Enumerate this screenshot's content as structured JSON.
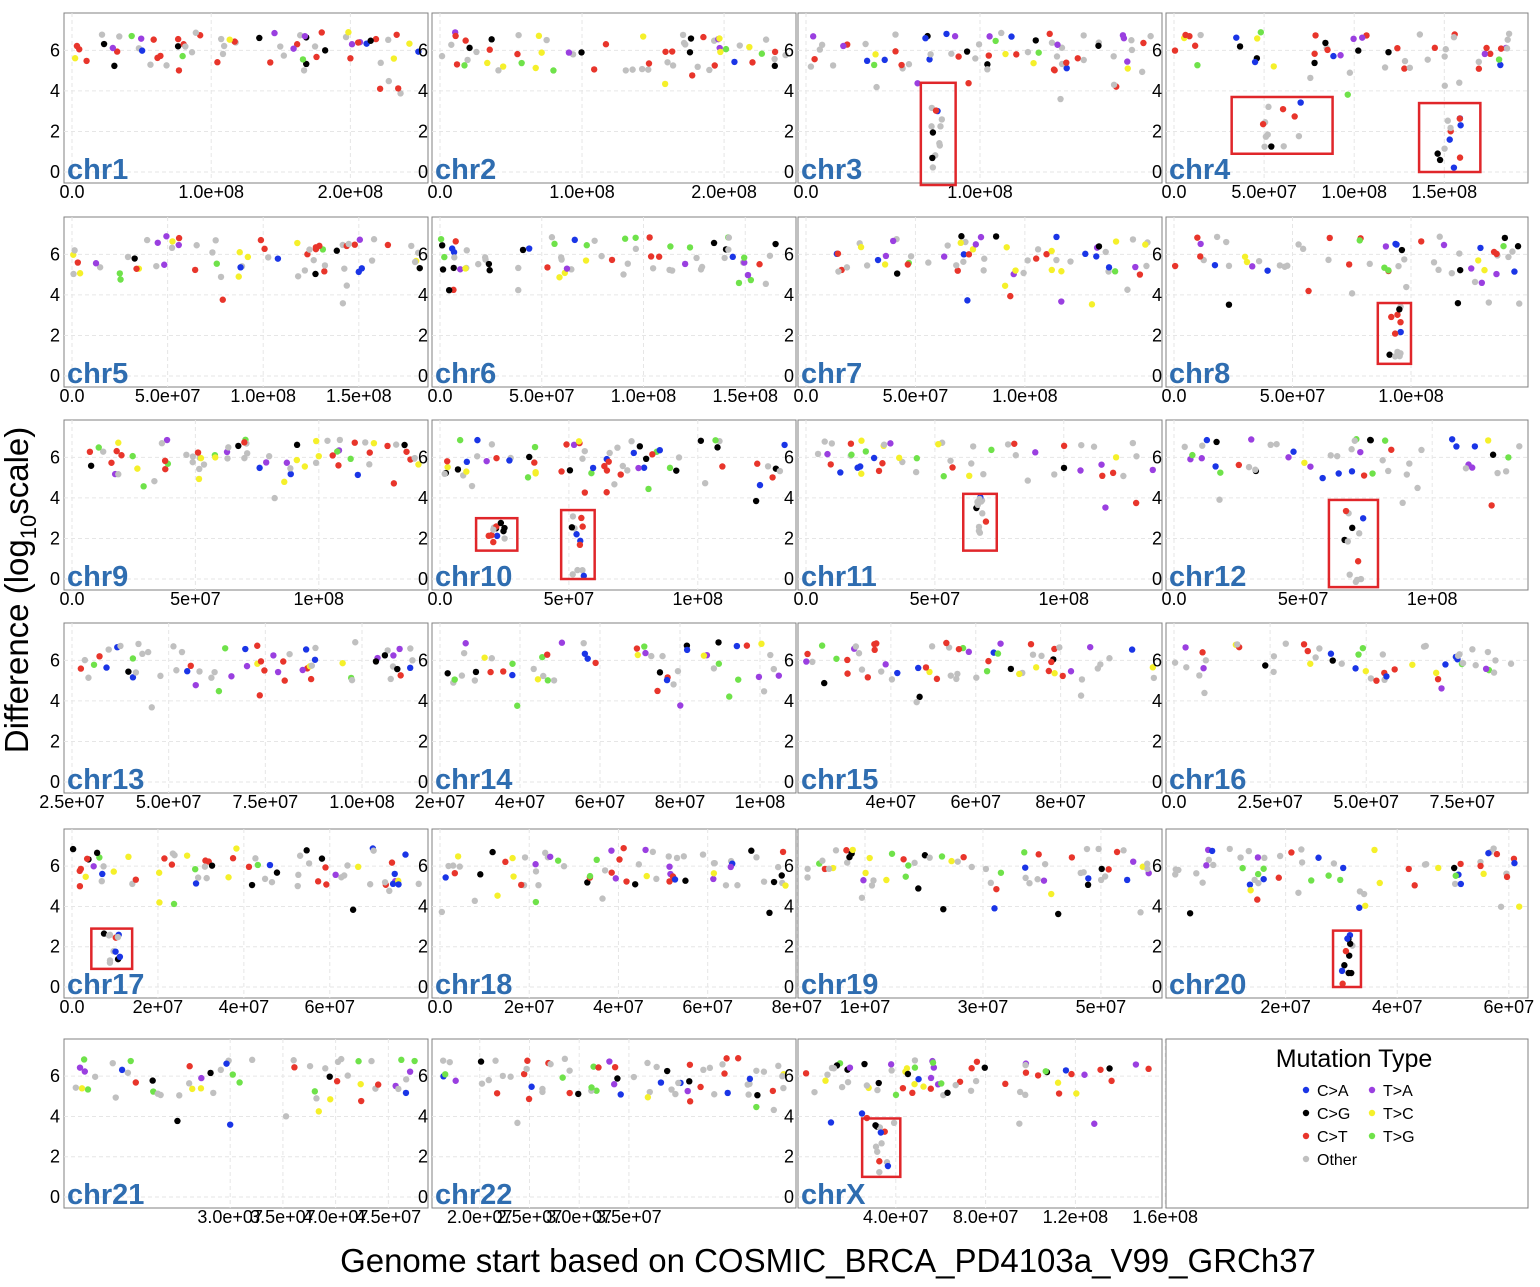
{
  "chart_data": {
    "type": "scatter",
    "xlabel": "Genome start based on COSMIC_BRCA_PD4103a_V99_GRCh37",
    "ylabel_prefix": "Difference (log",
    "ylabel_sub": "10",
    "ylabel_suffix": "scale)",
    "yticks": [
      "0",
      "2",
      "4",
      "6"
    ],
    "legend": {
      "title": "Mutation Type",
      "entries": [
        {
          "label": "C>A",
          "color": "#1a35e6"
        },
        {
          "label": "C>G",
          "color": "#000000"
        },
        {
          "label": "C>T",
          "color": "#e8352b"
        },
        {
          "label": "Other",
          "color": "#c0c0c0"
        },
        {
          "label": "T>A",
          "color": "#9a3fe0"
        },
        {
          "label": "T>C",
          "color": "#f5f02a"
        },
        {
          "label": "T>G",
          "color": "#6fe24a"
        }
      ]
    },
    "highlight_color": "#e0262a",
    "panels": [
      {
        "name": "chr1",
        "xlim": [
          0,
          250000000
        ],
        "xticks": [
          {
            "v": 0,
            "l": "0.0"
          },
          {
            "v": 100000000,
            "l": "1.0e+08"
          },
          {
            "v": 200000000,
            "l": "2.0e+08"
          }
        ],
        "boxes": []
      },
      {
        "name": "chr2",
        "xlim": [
          0,
          245000000
        ],
        "xticks": [
          {
            "v": 0,
            "l": "0.0"
          },
          {
            "v": 100000000,
            "l": "1.0e+08"
          },
          {
            "v": 200000000,
            "l": "2.0e+08"
          }
        ],
        "boxes": []
      },
      {
        "name": "chr3",
        "xlim": [
          0,
          200000000
        ],
        "xticks": [
          {
            "v": 0,
            "l": "0.0"
          },
          {
            "v": 100000000,
            "l": "1.0e+08"
          }
        ],
        "boxes": [
          {
            "x": [
              66000000,
              86000000
            ],
            "y": [
              -0.8,
              4.4
            ]
          }
        ]
      },
      {
        "name": "chr4",
        "xlim": [
          0,
          192000000
        ],
        "xticks": [
          {
            "v": 0,
            "l": "0.0"
          },
          {
            "v": 50000000,
            "l": "5.0e+07"
          },
          {
            "v": 100000000,
            "l": "1.0e+08"
          },
          {
            "v": 150000000,
            "l": "1.5e+08"
          }
        ],
        "boxes": [
          {
            "x": [
              32000000,
              88000000
            ],
            "y": [
              0.9,
              3.7
            ]
          },
          {
            "x": [
              136000000,
              170000000
            ],
            "y": [
              0,
              3.4
            ]
          }
        ]
      },
      {
        "name": "chr5",
        "xlim": [
          0,
          182000000
        ],
        "xticks": [
          {
            "v": 0,
            "l": "0.0"
          },
          {
            "v": 50000000,
            "l": "5.0e+07"
          },
          {
            "v": 100000000,
            "l": "1.0e+08"
          },
          {
            "v": 150000000,
            "l": "1.5e+08"
          }
        ],
        "boxes": []
      },
      {
        "name": "chr6",
        "xlim": [
          0,
          171000000
        ],
        "xticks": [
          {
            "v": 0,
            "l": "0.0"
          },
          {
            "v": 50000000,
            "l": "5.0e+07"
          },
          {
            "v": 100000000,
            "l": "1.0e+08"
          },
          {
            "v": 150000000,
            "l": "1.5e+08"
          }
        ],
        "boxes": []
      },
      {
        "name": "chr7",
        "xlim": [
          0,
          159000000
        ],
        "xticks": [
          {
            "v": 0,
            "l": "0.0"
          },
          {
            "v": 50000000,
            "l": "5.0e+07"
          },
          {
            "v": 100000000,
            "l": "1.0e+08"
          }
        ],
        "boxes": []
      },
      {
        "name": "chr8",
        "xlim": [
          0,
          146000000
        ],
        "xticks": [
          {
            "v": 0,
            "l": "0.0"
          },
          {
            "v": 50000000,
            "l": "5.0e+07"
          },
          {
            "v": 100000000,
            "l": "1.0e+08"
          }
        ],
        "boxes": [
          {
            "x": [
              86000000,
              100000000
            ],
            "y": [
              0.6,
              3.6
            ]
          }
        ]
      },
      {
        "name": "chr9",
        "xlim": [
          0,
          141000000
        ],
        "xticks": [
          {
            "v": 0,
            "l": "0.0"
          },
          {
            "v": 50000000,
            "l": "5e+07"
          },
          {
            "v": 100000000,
            "l": "1e+08"
          }
        ],
        "boxes": []
      },
      {
        "name": "chr10",
        "xlim": [
          0,
          135000000
        ],
        "xticks": [
          {
            "v": 0,
            "l": "0.0"
          },
          {
            "v": 50000000,
            "l": "5e+07"
          },
          {
            "v": 100000000,
            "l": "1e+08"
          }
        ],
        "boxes": [
          {
            "x": [
              14000000,
              30000000
            ],
            "y": [
              1.4,
              3.0
            ]
          },
          {
            "x": [
              47000000,
              60000000
            ],
            "y": [
              0,
              3.4
            ]
          }
        ]
      },
      {
        "name": "chr11",
        "xlim": [
          0,
          135000000
        ],
        "xticks": [
          {
            "v": 0,
            "l": "0.0"
          },
          {
            "v": 50000000,
            "l": "5e+07"
          },
          {
            "v": 100000000,
            "l": "1e+08"
          }
        ],
        "boxes": [
          {
            "x": [
              61000000,
              74000000
            ],
            "y": [
              1.4,
              4.2
            ]
          }
        ]
      },
      {
        "name": "chr12",
        "xlim": [
          0,
          134000000
        ],
        "xticks": [
          {
            "v": 0,
            "l": "0.0"
          },
          {
            "v": 50000000,
            "l": "5e+07"
          },
          {
            "v": 100000000,
            "l": "1e+08"
          }
        ],
        "boxes": [
          {
            "x": [
              60000000,
              79000000
            ],
            "y": [
              -0.4,
              3.9
            ]
          }
        ]
      },
      {
        "name": "chr13",
        "xlim": [
          25000000,
          115000000
        ],
        "xticks": [
          {
            "v": 25000000,
            "l": "2.5e+07"
          },
          {
            "v": 50000000,
            "l": "5.0e+07"
          },
          {
            "v": 75000000,
            "l": "7.5e+07"
          },
          {
            "v": 100000000,
            "l": "1.0e+08"
          }
        ],
        "boxes": []
      },
      {
        "name": "chr14",
        "xlim": [
          20000000,
          107000000
        ],
        "xticks": [
          {
            "v": 20000000,
            "l": "2e+07"
          },
          {
            "v": 40000000,
            "l": "4e+07"
          },
          {
            "v": 60000000,
            "l": "6e+07"
          },
          {
            "v": 80000000,
            "l": "8e+07"
          },
          {
            "v": 100000000,
            "l": "1e+08"
          }
        ],
        "boxes": []
      },
      {
        "name": "chr15",
        "xlim": [
          20000000,
          102000000
        ],
        "xticks": [
          {
            "v": 40000000,
            "l": "4e+07"
          },
          {
            "v": 60000000,
            "l": "6e+07"
          },
          {
            "v": 80000000,
            "l": "8e+07"
          }
        ],
        "boxes": []
      },
      {
        "name": "chr16",
        "xlim": [
          0,
          90000000
        ],
        "xticks": [
          {
            "v": 0,
            "l": "0.0"
          },
          {
            "v": 25000000,
            "l": "2.5e+07"
          },
          {
            "v": 50000000,
            "l": "5.0e+07"
          },
          {
            "v": 75000000,
            "l": "7.5e+07"
          }
        ],
        "boxes": []
      },
      {
        "name": "chr17",
        "xlim": [
          0,
          81000000
        ],
        "xticks": [
          {
            "v": 0,
            "l": "0.0"
          },
          {
            "v": 20000000,
            "l": "2e+07"
          },
          {
            "v": 40000000,
            "l": "4e+07"
          },
          {
            "v": 60000000,
            "l": "6e+07"
          }
        ],
        "boxes": [
          {
            "x": [
              4500000,
              14000000
            ],
            "y": [
              0.9,
              2.9
            ]
          }
        ]
      },
      {
        "name": "chr18",
        "xlim": [
          0,
          78000000
        ],
        "xticks": [
          {
            "v": 0,
            "l": "0.0"
          },
          {
            "v": 20000000,
            "l": "2e+07"
          },
          {
            "v": 40000000,
            "l": "4e+07"
          },
          {
            "v": 60000000,
            "l": "6e+07"
          },
          {
            "v": 80000000,
            "l": "8e+07"
          }
        ],
        "boxes": []
      },
      {
        "name": "chr19",
        "xlim": [
          0,
          59000000
        ],
        "xticks": [
          {
            "v": 10000000,
            "l": "1e+07"
          },
          {
            "v": 30000000,
            "l": "3e+07"
          },
          {
            "v": 50000000,
            "l": "5e+07"
          }
        ],
        "boxes": []
      },
      {
        "name": "chr20",
        "xlim": [
          0,
          62000000
        ],
        "xticks": [
          {
            "v": 20000000,
            "l": "2e+07"
          },
          {
            "v": 40000000,
            "l": "4e+07"
          },
          {
            "v": 60000000,
            "l": "6e+07"
          }
        ],
        "boxes": [
          {
            "x": [
              28500000,
              33500000
            ],
            "y": [
              0,
              2.8
            ]
          }
        ]
      },
      {
        "name": "chr21",
        "xlim": [
          15000000,
          48000000
        ],
        "xticks": [
          {
            "v": 30000000,
            "l": "3.0e+07"
          },
          {
            "v": 35000000,
            "l": "3.5e+07"
          },
          {
            "v": 40000000,
            "l": "4.0e+07"
          },
          {
            "v": 45000000,
            "l": "4.5e+07"
          }
        ],
        "boxes": []
      },
      {
        "name": "chr22",
        "xlim": [
          16000000,
          51000000
        ],
        "xticks": [
          {
            "v": 20000000,
            "l": "2.0e+07"
          },
          {
            "v": 25000000,
            "l": "2.5e+07"
          },
          {
            "v": 30000000,
            "l": "3.0e+07"
          },
          {
            "v": 35000000,
            "l": "3.5e+07"
          }
        ],
        "boxes": []
      },
      {
        "name": "chrX",
        "xlim": [
          0,
          155000000
        ],
        "xticks": [
          {
            "v": 40000000,
            "l": "4.0e+07"
          },
          {
            "v": 80000000,
            "l": "8.0e+07"
          },
          {
            "v": 120000000,
            "l": "1.2e+08"
          },
          {
            "v": 160000000,
            "l": "1.6e+08"
          }
        ],
        "boxes": [
          {
            "x": [
              25000000,
              42000000
            ],
            "y": [
              1.0,
              3.9
            ]
          }
        ]
      }
    ]
  }
}
